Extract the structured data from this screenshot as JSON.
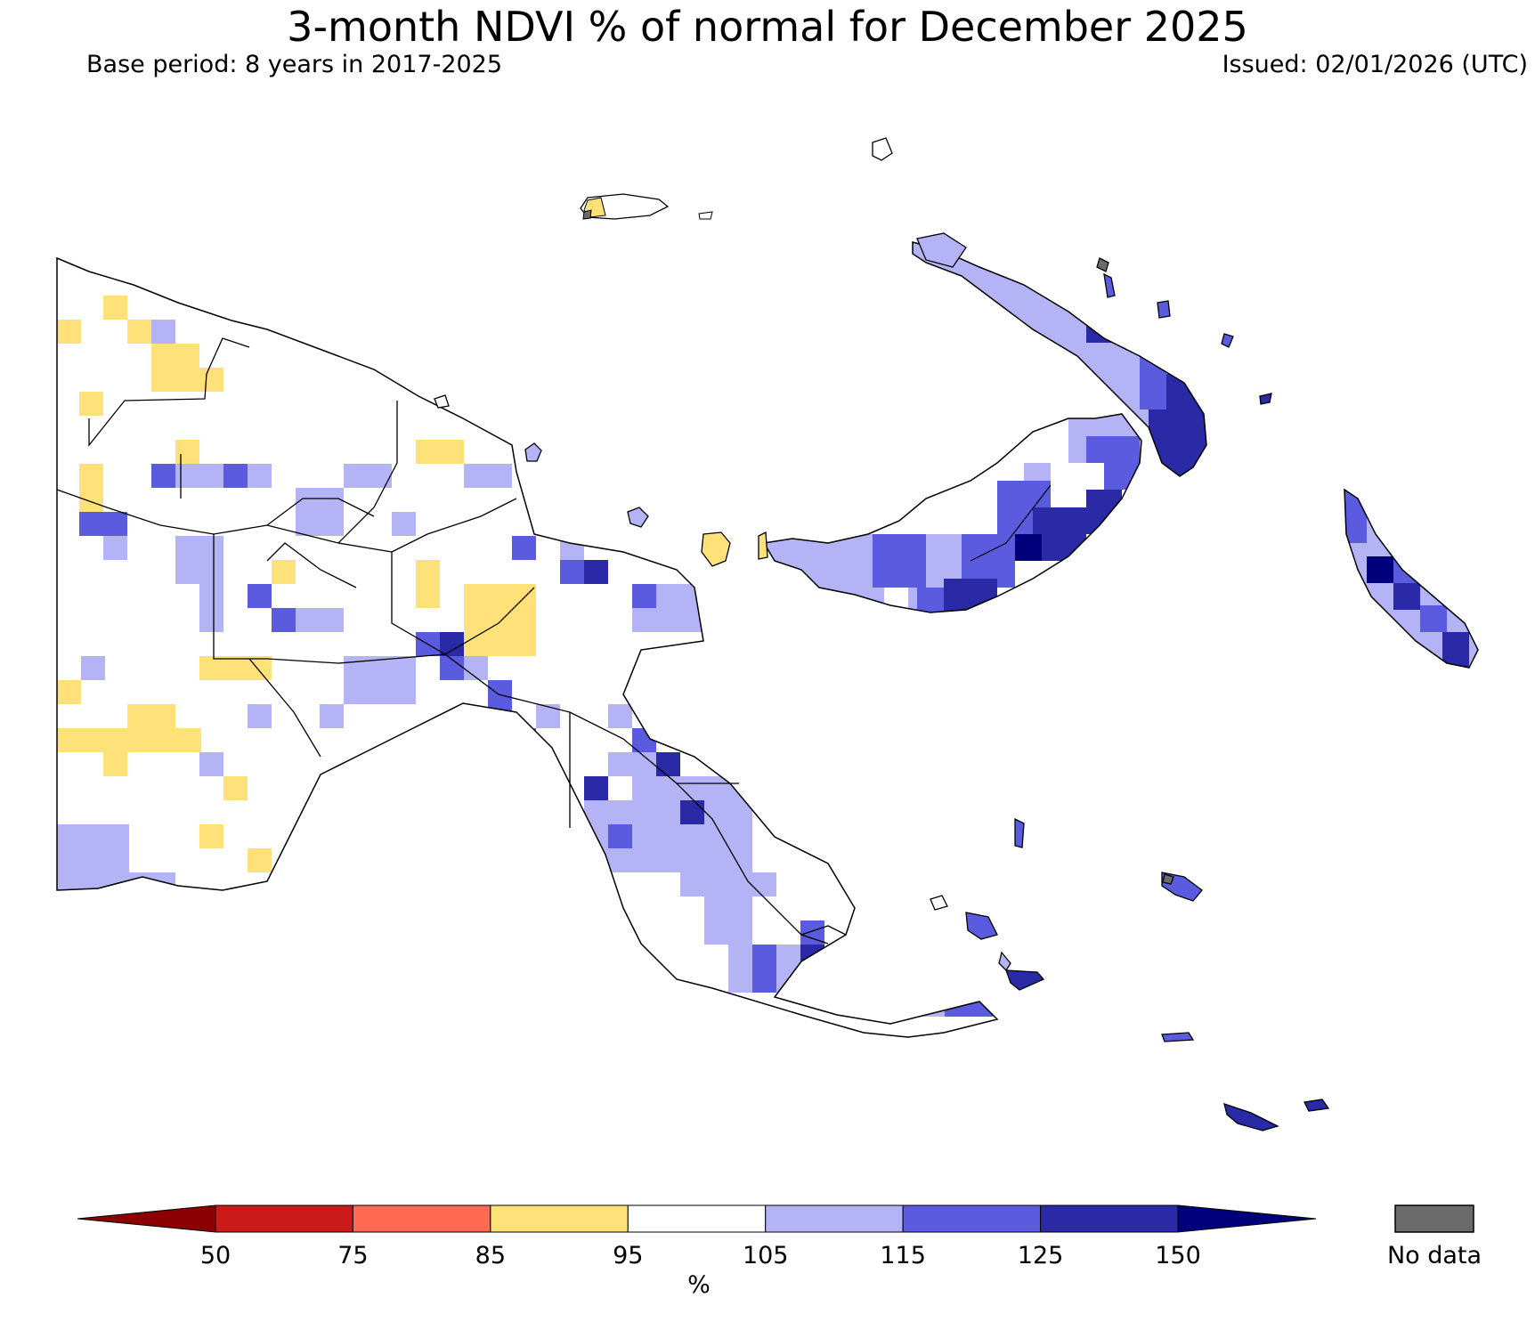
{
  "title": "3-month NDVI % of normal for December 2025",
  "base_period": "Base period: 8 years in 2017-2025",
  "issued": "Issued: 02/01/2026 (UTC)",
  "legend": {
    "unit": "%",
    "ticks": [
      "50",
      "75",
      "85",
      "95",
      "105",
      "115",
      "125",
      "150"
    ],
    "bins": [
      {
        "range": "<50",
        "color": "#8b0000"
      },
      {
        "range": "50-75",
        "color": "#cc1a1a"
      },
      {
        "range": "75-85",
        "color": "#ff6a50"
      },
      {
        "range": "85-95",
        "color": "#ffe17a"
      },
      {
        "range": "95-105",
        "color": "#ffffff"
      },
      {
        "range": "105-115",
        "color": "#b3b3f5"
      },
      {
        "range": "115-125",
        "color": "#5b5be0"
      },
      {
        "range": "125-150",
        "color": "#2a2aa6"
      },
      {
        "range": ">150",
        "color": "#00007a"
      }
    ],
    "no_data_label": "No data",
    "no_data_color": "#6b6b6b"
  }
}
